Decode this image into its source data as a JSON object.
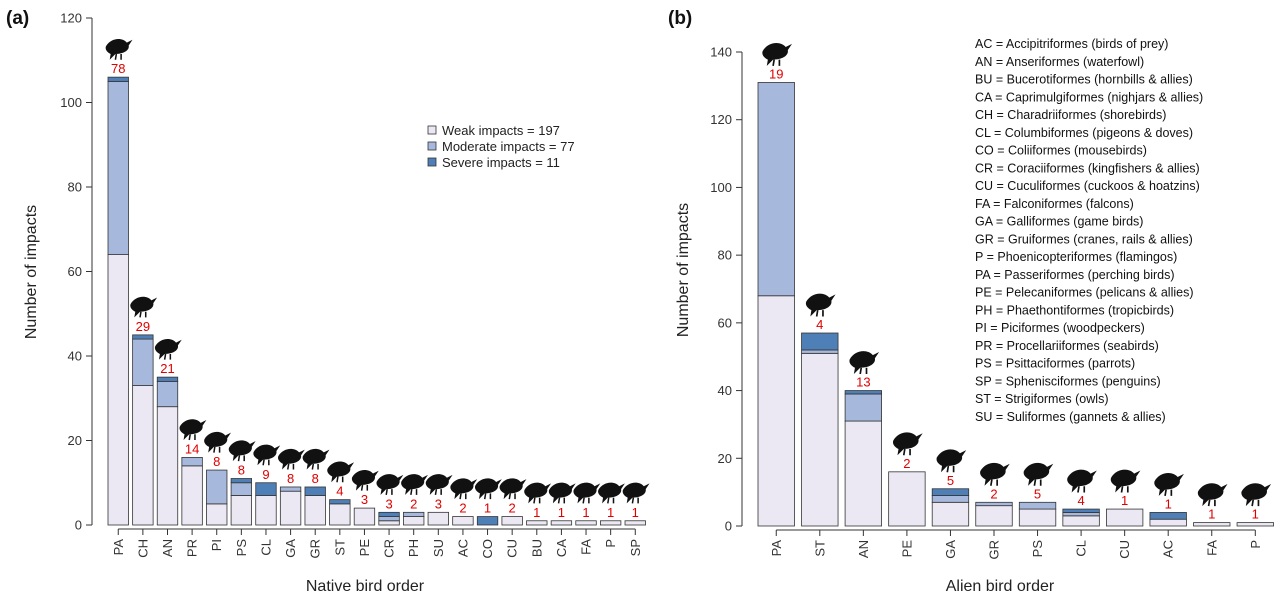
{
  "colors": {
    "weak": "#ebe8f3",
    "moderate": "#a6b8dc",
    "severe": "#4f7fb7",
    "count": "#e00000"
  },
  "chart_data": [
    {
      "type": "bar",
      "stacked": true,
      "panel_label": "(a)",
      "xlabel": "Native bird order",
      "ylabel": "Number of impacts",
      "ylim": [
        0,
        120
      ],
      "yticks": [
        "0",
        "20",
        "40",
        "60",
        "80",
        "100",
        "120"
      ],
      "categories": [
        "PA",
        "CH",
        "AN",
        "PR",
        "PI",
        "PS",
        "CL",
        "GA",
        "GR",
        "ST",
        "PE",
        "CR",
        "PH",
        "SU",
        "AC",
        "CO",
        "CU",
        "BU",
        "CA",
        "FA",
        "P",
        "SP"
      ],
      "series": [
        {
          "name": "Weak impacts = 197",
          "values": [
            64,
            33,
            28,
            14,
            5,
            7,
            7,
            8,
            7,
            5,
            4,
            1,
            2,
            3,
            2,
            0,
            2,
            1,
            1,
            1,
            1,
            1
          ]
        },
        {
          "name": "Moderate impacts = 77",
          "values": [
            41,
            11,
            6,
            2,
            8,
            3,
            0,
            1,
            0,
            0,
            0,
            1,
            1,
            0,
            0,
            0,
            0,
            0,
            0,
            0,
            0,
            0
          ]
        },
        {
          "name": "Severe impacts = 11",
          "values": [
            1,
            1,
            1,
            0,
            0,
            1,
            3,
            0,
            2,
            1,
            0,
            1,
            0,
            0,
            0,
            2,
            0,
            0,
            0,
            0,
            0,
            0
          ]
        }
      ],
      "counts": [
        "78",
        "29",
        "21",
        "14",
        "8",
        "8",
        "9",
        "8",
        "8",
        "4",
        "3",
        "3",
        "2",
        "3",
        "2",
        "1",
        "2",
        "1",
        "1",
        "1",
        "1",
        "1"
      ],
      "legend": [
        "Weak impacts = 197",
        "Moderate impacts = 77",
        "Severe impacts = 11"
      ],
      "legend_position": "top-right"
    },
    {
      "type": "bar",
      "stacked": true,
      "panel_label": "(b)",
      "xlabel": "Alien bird order",
      "ylabel": "Number of impacts",
      "ylim": [
        0,
        140
      ],
      "yticks": [
        "0",
        "20",
        "40",
        "60",
        "80",
        "100",
        "120",
        "140"
      ],
      "categories": [
        "PA",
        "ST",
        "AN",
        "PE",
        "GA",
        "GR",
        "PS",
        "CL",
        "CU",
        "AC",
        "FA",
        "P"
      ],
      "series": [
        {
          "name": "Weak",
          "values": [
            68,
            51,
            31,
            16,
            7,
            6,
            5,
            3,
            5,
            2,
            1,
            1
          ]
        },
        {
          "name": "Moderate",
          "values": [
            63,
            1,
            8,
            0,
            2,
            1,
            2,
            1,
            0,
            0,
            0,
            0
          ]
        },
        {
          "name": "Severe",
          "values": [
            0,
            5,
            1,
            0,
            2,
            0,
            0,
            1,
            0,
            2,
            0,
            0
          ]
        }
      ],
      "counts": [
        "19",
        "4",
        "13",
        "2",
        "5",
        "2",
        "5",
        "4",
        "1",
        "1",
        "1",
        "1"
      ],
      "key": [
        "AC = Accipitriformes (birds of prey)",
        "AN = Anseriformes (waterfowl)",
        "BU = Bucerotiformes (hornbills & allies)",
        "CA = Caprimulgiformes (nighjars & allies)",
        "CH = Charadriiformes (shorebirds)",
        "CL = Columbiformes (pigeons & doves)",
        "CO = Coliiformes (mousebirds)",
        "CR = Coraciiformes (kingfishers & allies)",
        "CU = Cuculiformes (cuckoos & hoatzins)",
        "FA = Falconiformes (falcons)",
        "GA = Galliformes (game birds)",
        "GR = Gruiformes (cranes, rails & allies)",
        "P = Phoenicopteriformes (flamingos)",
        "PA = Passeriformes (perching birds)",
        "PE = Pelecaniformes (pelicans & allies)",
        "PH = Phaethontiformes (tropicbirds)",
        "PI = Piciformes (woodpeckers)",
        "PR = Procellariiformes (seabirds)",
        "PS = Psittaciformes (parrots)",
        "SP = Sphenisciformes (penguins)",
        "ST = Strigiformes (owls)",
        "SU = Suliformes (gannets & allies)"
      ]
    }
  ]
}
